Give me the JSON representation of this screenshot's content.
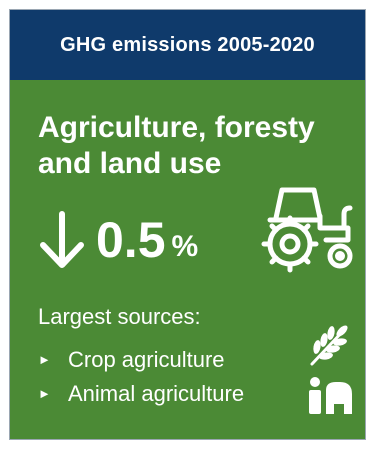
{
  "header": {
    "title": "GHG emissions 2005-2020"
  },
  "sector": {
    "line1": "Agriculture, foresty",
    "line2": "and land use"
  },
  "change": {
    "direction": "down",
    "value": "0.5",
    "unit": "%"
  },
  "sources": {
    "heading": "Largest sources:",
    "bullet": "►",
    "items": [
      {
        "label": "Crop agriculture",
        "icon": "wheat-icon"
      },
      {
        "label": "Animal agriculture",
        "icon": "animal-icon"
      }
    ]
  },
  "icons": {
    "sector": "tractor-icon",
    "change": "arrow-down-icon"
  },
  "colors": {
    "header_bg": "#0f3a6b",
    "card_bg": "#4b8a35",
    "text": "#ffffff"
  }
}
